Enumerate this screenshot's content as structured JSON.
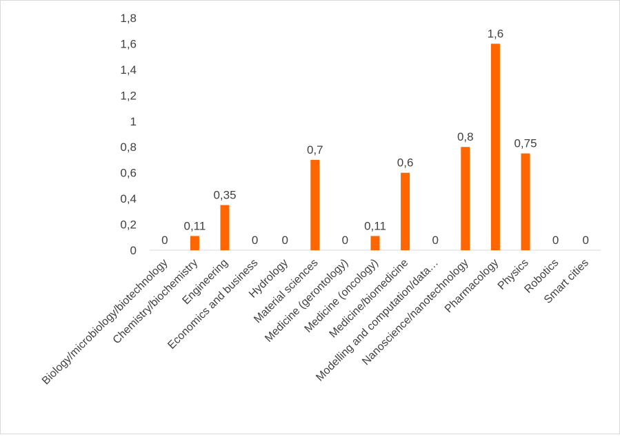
{
  "chart_data": {
    "type": "bar",
    "title": "",
    "xlabel": "",
    "ylabel": "",
    "ylim": [
      0,
      1.8
    ],
    "yticks": [
      "0",
      "0,2",
      "0,4",
      "0,6",
      "0,8",
      "1",
      "1,2",
      "1,4",
      "1,6",
      "1,8"
    ],
    "grid": false,
    "legend": "none",
    "bar_color": "#ff6600",
    "categories": [
      "Biology/microbiology/biotechnology",
      "Chemistry/biochemistry",
      "Engineering",
      "Economics and business",
      "Hydrology",
      "Material sciences",
      "Medicine (gerontology)",
      "Medicine (oncology)",
      "Medicine/biomedicine",
      "Modelling and computation/data…",
      "Nanoscience/nanotechnology",
      "Pharmacology",
      "Physics",
      "Robotics",
      "Smart cities"
    ],
    "values": [
      0,
      0.11,
      0.35,
      0,
      0,
      0.7,
      0,
      0.11,
      0.6,
      0,
      0.8,
      1.6,
      0.75,
      0,
      0
    ],
    "data_labels": [
      "0",
      "0,11",
      "0,35",
      "0",
      "0",
      "0,7",
      "0",
      "0,11",
      "0,6",
      "0",
      "0,8",
      "1,6",
      "0,75",
      "0",
      "0"
    ]
  }
}
